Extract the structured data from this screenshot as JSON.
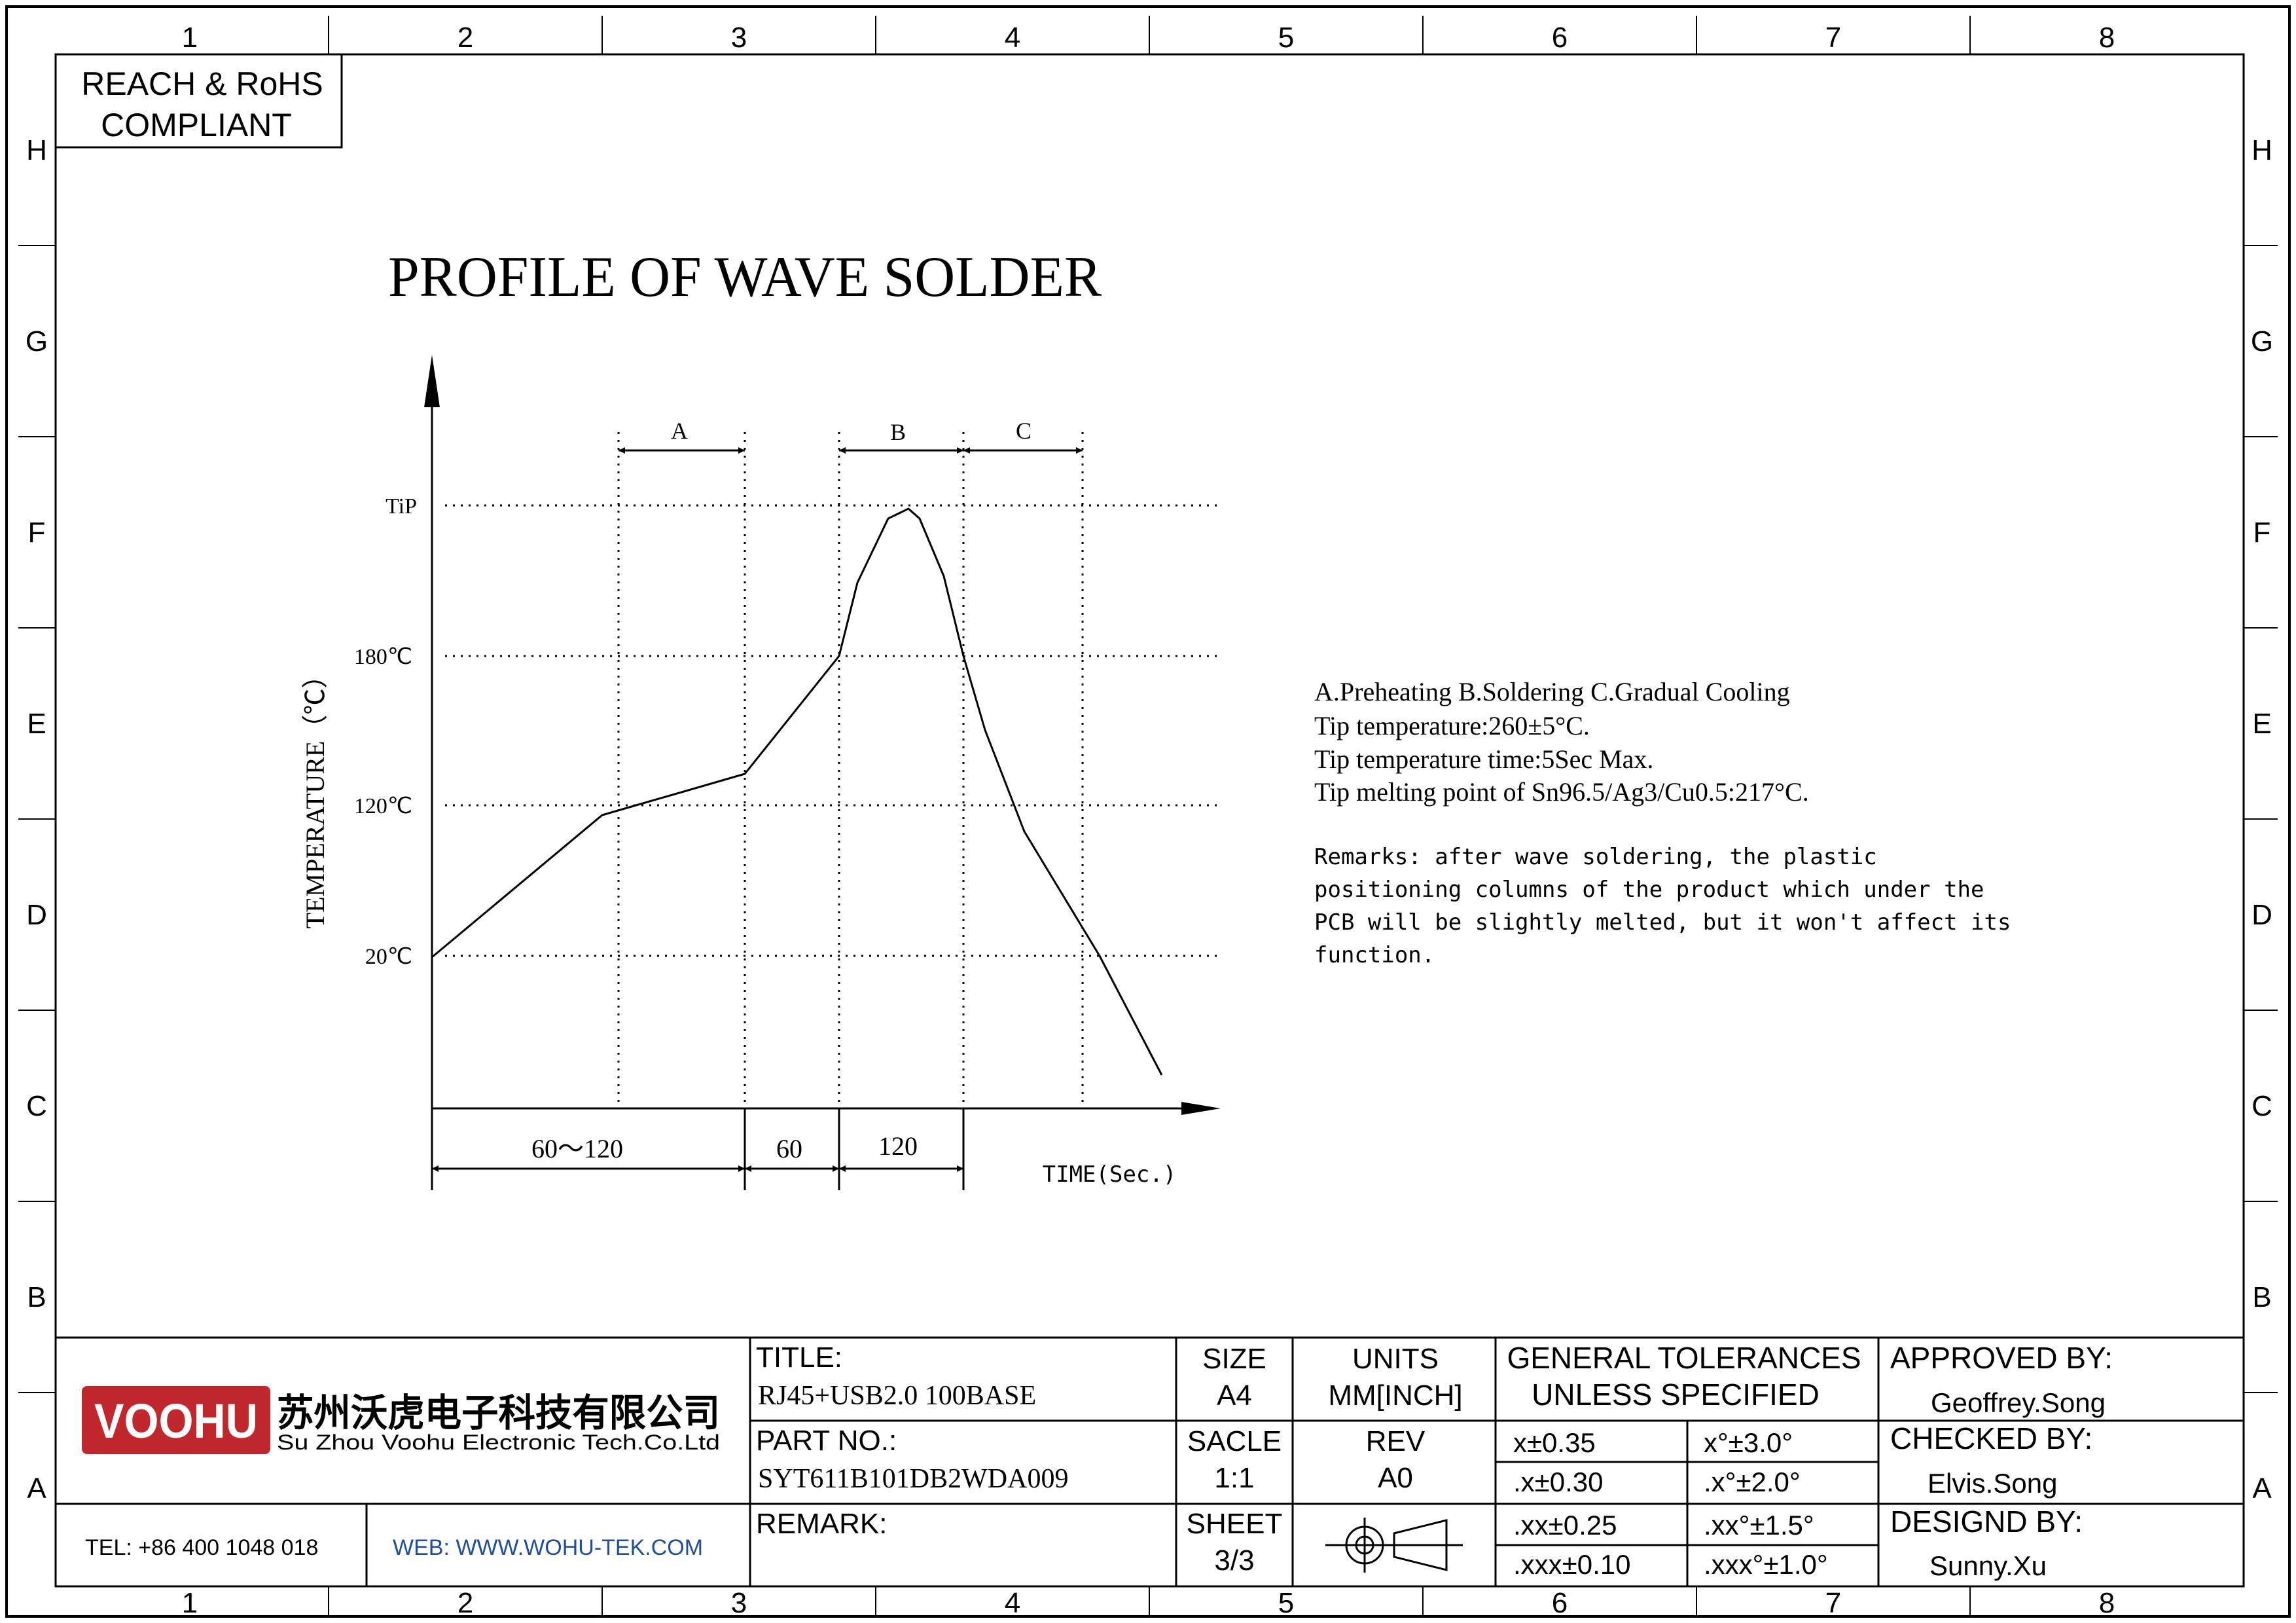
{
  "frame": {
    "columns": [
      "1",
      "2",
      "3",
      "4",
      "5",
      "6",
      "7",
      "8"
    ],
    "rows": [
      "H",
      "G",
      "F",
      "E",
      "D",
      "C",
      "B",
      "A"
    ]
  },
  "compliance": {
    "line1": "REACH & RoHS",
    "line2": "COMPLIANT"
  },
  "diagram": {
    "title": "PROFILE OF WAVE SOLDER",
    "y_axis_label": "TEMPERATURE（℃）",
    "x_axis_label": "TIME(Sec.)",
    "y_levels": [
      {
        "label": "TiP"
      },
      {
        "label": "180℃"
      },
      {
        "label": "120℃"
      },
      {
        "label": "20℃"
      }
    ],
    "phases": [
      {
        "label": "A"
      },
      {
        "label": "B"
      },
      {
        "label": "C"
      }
    ],
    "durations": [
      {
        "label": "60～120"
      },
      {
        "label": "60"
      },
      {
        "label": "120"
      }
    ]
  },
  "notes": {
    "lines": [
      "A.Preheating  B.Soldering  C.Gradual Cooling",
      "Tip temperature:260±5°C.",
      "Tip temperature time:5Sec Max.",
      "Tip melting point of Sn96.5/Ag3/Cu0.5:217°C."
    ],
    "remarks": [
      "Remarks: after wave soldering, the plastic",
      "positioning columns of the product  which under the",
      "PCB will be slightly melted, but it won't affect its",
      "function."
    ]
  },
  "title_block": {
    "company": {
      "logo_text": "VOOHU",
      "name_cn": "苏州沃虎电子科技有限公司",
      "name_en": "Su Zhou Voohu Electronic Tech.Co.Ltd",
      "tel": "TEL: +86 400 1048 018",
      "web": "WEB: WWW.WOHU-TEK.COM",
      "brand_red": "#c0282d",
      "web_blue": "#1f4e9c"
    },
    "title_label": "TITLE:",
    "title_value": "RJ45+USB2.0 100BASE",
    "part_label": "PART NO.:",
    "part_value": "SYT611B101DB2WDA009",
    "remark_label": "REMARK:",
    "size_label": "SIZE",
    "size_value": "A4",
    "units_label": "UNITS",
    "units_value": "MM[INCH]",
    "scale_label": "SACLE",
    "scale_value": "1:1",
    "rev_label": "REV",
    "rev_value": "A0",
    "sheet_label": "SHEET",
    "sheet_value": "3/3",
    "projection_icon": "third-angle-projection-icon",
    "tolerances_label_1": "GENERAL TOLERANCES",
    "tolerances_label_2": "UNLESS SPECIFIED",
    "tolerances": [
      {
        "linear": "x±0.35",
        "angular": "x°±3.0°"
      },
      {
        "linear": ".x±0.30",
        "angular": ".x°±2.0°"
      },
      {
        "linear": ".xx±0.25",
        "angular": ".xx°±1.5°"
      },
      {
        "linear": ".xxx±0.10",
        "angular": ".xxx°±1.0°"
      }
    ],
    "approved_label": "APPROVED BY:",
    "approved_value": "Geoffrey.Song",
    "checked_label": "CHECKED BY:",
    "checked_value": "Elvis.Song",
    "designed_label": "DESIGND BY:",
    "designed_value": "Sunny.Xu"
  }
}
